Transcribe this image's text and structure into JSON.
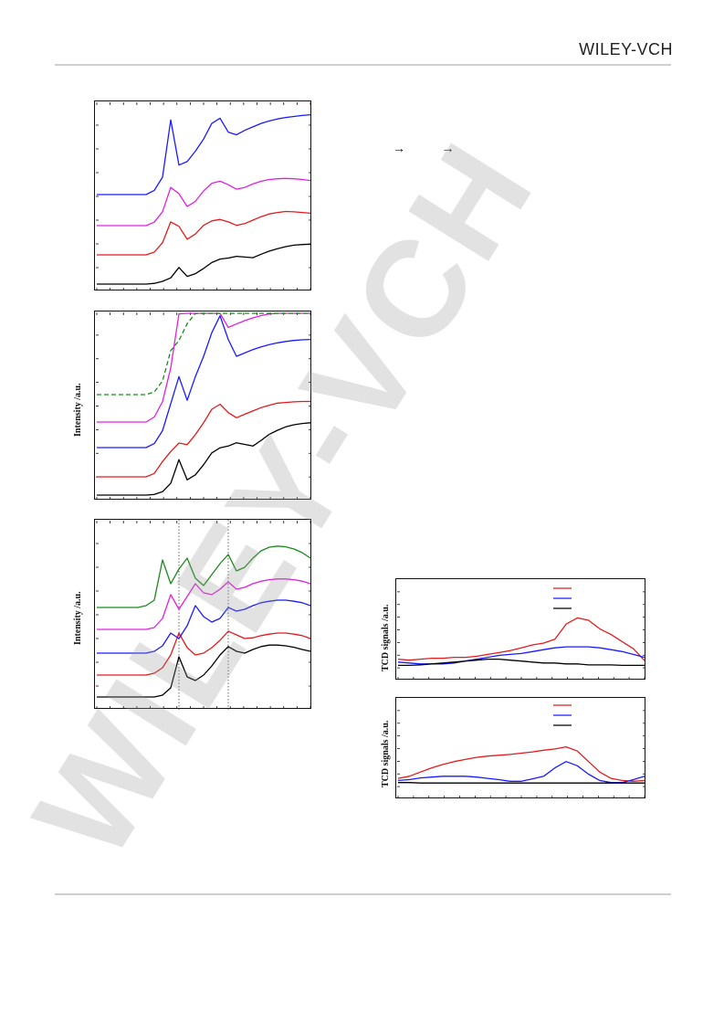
{
  "header": {
    "publisher": "WILEY-VCH"
  },
  "figure": {
    "arrows": "→ →",
    "panel_mid_ylabel": "Intensity /a.u.",
    "panel_bot_ylabel": "Intensity /a.u.",
    "tcd_top_ylabel": "TCD signals /a.u.",
    "tcd_bottom_ylabel": "TCD signals /a.u."
  },
  "watermark": {
    "text": "WILEY-VCH"
  },
  "colors": {
    "black": "#000000",
    "red": "#e31a1c",
    "magenta": "#e020e0",
    "blue": "#1a1aff",
    "green": "#1a8a1a"
  },
  "chart_data": [
    {
      "type": "line",
      "series": [
        {
          "color": "black",
          "values": [
            0,
            0,
            0,
            0,
            0,
            0,
            0,
            0.02,
            0.08,
            0.18,
            0.48,
            0.22,
            0.3,
            0.45,
            0.62,
            0.72,
            0.75,
            0.8,
            0.78,
            0.76,
            0.86,
            0.95,
            1.02,
            1.08,
            1.12,
            1.14,
            1.15
          ]
        },
        {
          "color": "red",
          "values": [
            0,
            0,
            0,
            0,
            0,
            0,
            0,
            0.08,
            0.35,
            0.95,
            0.82,
            0.45,
            0.6,
            0.85,
            0.98,
            1.02,
            0.95,
            0.85,
            0.9,
            1.0,
            1.1,
            1.18,
            1.22,
            1.25,
            1.24,
            1.22,
            1.2
          ]
        },
        {
          "color": "magenta",
          "values": [
            0,
            0,
            0,
            0,
            0,
            0,
            0,
            0.1,
            0.4,
            1.1,
            0.92,
            0.55,
            0.7,
            1.0,
            1.22,
            1.28,
            1.18,
            1.05,
            1.1,
            1.2,
            1.28,
            1.33,
            1.35,
            1.36,
            1.35,
            1.33,
            1.3
          ]
        },
        {
          "color": "blue",
          "values": [
            0,
            0,
            0,
            0,
            0,
            0,
            0,
            0.12,
            0.5,
            2.15,
            0.85,
            0.95,
            1.25,
            1.6,
            2.05,
            2.2,
            1.8,
            1.72,
            1.85,
            1.95,
            2.05,
            2.12,
            2.18,
            2.22,
            2.25,
            2.28,
            2.3
          ]
        }
      ]
    },
    {
      "type": "line",
      "series": [
        {
          "color": "black",
          "dash": false,
          "values": [
            0,
            0,
            0,
            0,
            0,
            0,
            0,
            0.02,
            0.1,
            0.35,
            1.05,
            0.45,
            0.6,
            0.9,
            1.25,
            1.4,
            1.45,
            1.55,
            1.5,
            1.45,
            1.62,
            1.8,
            1.92,
            2.02,
            2.08,
            2.12,
            2.14
          ]
        },
        {
          "color": "red",
          "dash": false,
          "values": [
            0,
            0,
            0,
            0,
            0,
            0,
            0,
            0.1,
            0.45,
            0.75,
            1.0,
            0.95,
            1.25,
            1.6,
            2.0,
            2.15,
            1.9,
            1.75,
            1.85,
            1.95,
            2.05,
            2.12,
            2.18,
            2.2,
            2.22,
            2.23,
            2.23
          ]
        },
        {
          "color": "blue",
          "dash": false,
          "values": [
            0,
            0,
            0,
            0,
            0,
            0,
            0,
            0.12,
            0.5,
            1.3,
            2.1,
            1.4,
            2.1,
            2.7,
            3.4,
            3.9,
            3.2,
            2.7,
            2.8,
            2.9,
            2.98,
            3.05,
            3.1,
            3.14,
            3.17,
            3.19,
            3.2
          ]
        },
        {
          "color": "magenta",
          "dash": false,
          "values": [
            0,
            0,
            0,
            0,
            0,
            0,
            0,
            0.15,
            0.6,
            1.6,
            3.2,
            5.2,
            3.4,
            3.7,
            4.1,
            4.3,
            2.8,
            2.9,
            3.0,
            3.08,
            3.15,
            3.2,
            3.24,
            3.27,
            3.29,
            3.3,
            3.3
          ]
        },
        {
          "color": "green",
          "dash": true,
          "values": [
            0,
            0,
            0,
            0,
            0,
            0,
            0,
            0.08,
            0.4,
            1.3,
            1.6,
            2.1,
            2.4,
            2.9,
            3.35,
            3.55,
            3.4,
            3.0,
            3.05,
            3.25,
            3.4,
            3.48,
            3.52,
            3.55,
            3.57,
            3.58,
            3.58
          ]
        }
      ]
    },
    {
      "type": "line",
      "series": [
        {
          "color": "black",
          "values": [
            0,
            0,
            0,
            0,
            0,
            0,
            0,
            0,
            0.05,
            0.25,
            1.1,
            0.55,
            0.45,
            0.6,
            0.85,
            1.15,
            1.38,
            1.25,
            1.2,
            1.3,
            1.38,
            1.42,
            1.42,
            1.4,
            1.36,
            1.3,
            1.25
          ]
        },
        {
          "color": "red",
          "values": [
            0,
            0,
            0,
            0,
            0,
            0,
            0,
            0.05,
            0.2,
            0.55,
            1.15,
            0.75,
            0.55,
            0.6,
            0.75,
            0.95,
            1.2,
            1.1,
            1.0,
            1.02,
            1.08,
            1.12,
            1.15,
            1.15,
            1.12,
            1.08,
            1.0
          ]
        },
        {
          "color": "blue",
          "values": [
            0,
            0,
            0,
            0,
            0,
            0,
            0,
            0.05,
            0.2,
            0.55,
            0.4,
            0.75,
            1.3,
            1.0,
            0.85,
            0.95,
            1.25,
            1.15,
            1.2,
            1.3,
            1.38,
            1.42,
            1.45,
            1.45,
            1.42,
            1.38,
            1.3
          ]
        },
        {
          "color": "magenta",
          "values": [
            0,
            0,
            0,
            0,
            0,
            0,
            0,
            0.05,
            0.3,
            0.95,
            0.55,
            0.9,
            1.25,
            1.0,
            0.95,
            1.1,
            1.3,
            1.1,
            1.15,
            1.25,
            1.32,
            1.36,
            1.38,
            1.38,
            1.36,
            1.32,
            1.25
          ]
        },
        {
          "color": "green",
          "values": [
            0,
            0,
            0,
            0,
            0,
            0,
            0.05,
            0.2,
            1.3,
            0.65,
            1.05,
            1.35,
            0.8,
            0.6,
            0.9,
            1.2,
            1.45,
            1.0,
            1.1,
            1.35,
            1.55,
            1.65,
            1.68,
            1.66,
            1.6,
            1.5,
            1.35
          ]
        }
      ],
      "vlines": [
        10,
        16
      ]
    },
    {
      "type": "line",
      "legend_colors": [
        "red",
        "blue",
        "black"
      ],
      "series": [
        {
          "color": "red",
          "values": [
            0.18,
            0.16,
            0.18,
            0.2,
            0.2,
            0.22,
            0.22,
            0.24,
            0.28,
            0.32,
            0.36,
            0.42,
            0.48,
            0.52,
            0.6,
            0.92,
            1.05,
            1.0,
            0.82,
            0.7,
            0.55,
            0.4,
            0.15
          ]
        },
        {
          "color": "blue",
          "values": [
            0.12,
            0.1,
            0.08,
            0.08,
            0.08,
            0.1,
            0.14,
            0.18,
            0.22,
            0.26,
            0.28,
            0.3,
            0.34,
            0.38,
            0.42,
            0.44,
            0.44,
            0.44,
            0.42,
            0.38,
            0.34,
            0.28,
            0.22
          ]
        },
        {
          "color": "black",
          "values": [
            0.05,
            0.05,
            0.06,
            0.08,
            0.1,
            0.12,
            0.14,
            0.16,
            0.18,
            0.18,
            0.16,
            0.14,
            0.12,
            0.1,
            0.1,
            0.08,
            0.08,
            0.06,
            0.06,
            0.06,
            0.05,
            0.05,
            0.05
          ]
        }
      ]
    },
    {
      "type": "line",
      "legend_colors": [
        "red",
        "blue",
        "black"
      ],
      "series": [
        {
          "color": "red",
          "values": [
            0.15,
            0.2,
            0.3,
            0.4,
            0.48,
            0.55,
            0.6,
            0.65,
            0.68,
            0.7,
            0.72,
            0.75,
            0.78,
            0.82,
            0.85,
            0.9,
            0.8,
            0.55,
            0.3,
            0.15,
            0.1,
            0.08,
            0.1
          ]
        },
        {
          "color": "blue",
          "values": [
            0.1,
            0.12,
            0.16,
            0.18,
            0.2,
            0.2,
            0.2,
            0.18,
            0.15,
            0.12,
            0.08,
            0.08,
            0.14,
            0.2,
            0.4,
            0.55,
            0.45,
            0.25,
            0.1,
            0.05,
            0.05,
            0.12,
            0.2
          ]
        },
        {
          "color": "black",
          "values": [
            0.05,
            0.05,
            0.04,
            0.04,
            0.04,
            0.04,
            0.04,
            0.04,
            0.04,
            0.04,
            0.04,
            0.04,
            0.04,
            0.04,
            0.04,
            0.04,
            0.04,
            0.04,
            0.04,
            0.04,
            0.04,
            0.04,
            0.04
          ]
        }
      ]
    }
  ]
}
